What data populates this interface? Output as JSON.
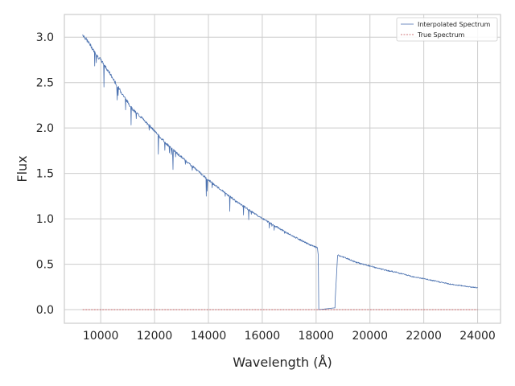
{
  "chart_data": {
    "type": "line",
    "title": "",
    "xlabel": "Wavelength (Å)",
    "ylabel": "Flux",
    "xlim": [
      8650,
      24850
    ],
    "ylim": [
      -0.15,
      3.25
    ],
    "xticks": [
      10000,
      12000,
      14000,
      16000,
      18000,
      20000,
      22000,
      24000
    ],
    "xtick_labels": [
      "10000",
      "12000",
      "14000",
      "16000",
      "18000",
      "20000",
      "22000",
      "24000"
    ],
    "yticks": [
      0.0,
      0.5,
      1.0,
      1.5,
      2.0,
      2.5,
      3.0
    ],
    "ytick_labels": [
      "0.0",
      "0.5",
      "1.0",
      "1.5",
      "2.0",
      "2.5",
      "3.0"
    ],
    "grid": true,
    "legend_position": "top-right",
    "series": [
      {
        "name": "Interpolated Spectrum",
        "color": "#4c72b0",
        "style": "solid",
        "x": [
          9330,
          9400,
          9600,
          9800,
          10000,
          10300,
          10600,
          10900,
          11200,
          11500,
          11800,
          12200,
          12600,
          13000,
          13400,
          13800,
          14200,
          14600,
          15000,
          15400,
          15800,
          16200,
          16600,
          17000,
          17400,
          17800,
          18050,
          18080,
          18100,
          18700,
          18710,
          18800,
          19000,
          19500,
          20000,
          20500,
          21000,
          21500,
          22000,
          22500,
          23000,
          23500,
          24000
        ],
        "y": [
          3.03,
          3.0,
          2.92,
          2.82,
          2.75,
          2.62,
          2.47,
          2.33,
          2.2,
          2.12,
          2.03,
          1.9,
          1.78,
          1.68,
          1.58,
          1.48,
          1.38,
          1.29,
          1.2,
          1.12,
          1.04,
          0.97,
          0.9,
          0.83,
          0.77,
          0.71,
          0.68,
          0.6,
          0.0,
          0.02,
          0.12,
          0.6,
          0.58,
          0.52,
          0.48,
          0.44,
          0.41,
          0.37,
          0.34,
          0.31,
          0.28,
          0.26,
          0.24
        ]
      },
      {
        "name": "True Spectrum",
        "color": "#c44e52",
        "style": "dashed",
        "x": [
          9330,
          24000
        ],
        "y": [
          0.0,
          0.0
        ]
      }
    ]
  }
}
